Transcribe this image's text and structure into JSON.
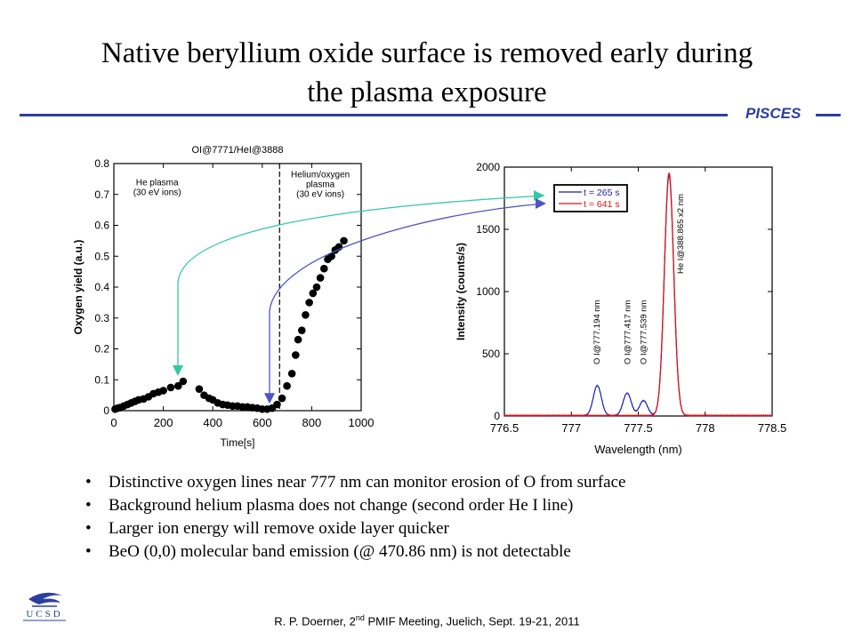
{
  "slide": {
    "title_line1": "Native beryllium oxide surface is removed early during",
    "title_line2": "the plasma exposure",
    "brand": "PISCES",
    "logo_text": "UCSD",
    "bullets": [
      "Distinctive oxygen lines near 777 nm can monitor erosion of O from surface",
      "Background helium plasma does not change (second order He I line)",
      "Larger ion energy will remove oxide layer quicker",
      "BeO (0,0) molecular band emission (@ 470.86 nm) is not detectable"
    ],
    "footer": {
      "author": "R. P. Doerner, 2",
      "sup": "nd",
      "rest": " PMIF Meeting, Juelich, Sept. 19-21, 2011"
    }
  },
  "colors": {
    "accent": "#2b3fa0",
    "teal_arrow": "#33c9a0",
    "blue_arrow": "#4f55c0",
    "blue_series": "#1a1aa8",
    "red_series": "#e01010"
  },
  "chart_data": [
    {
      "type": "scatter",
      "title": "OI@7771/HeI@3888",
      "xlabel": "Time[s]",
      "ylabel": "Oxygen yield (a.u.)",
      "xlim": [
        0,
        1000
      ],
      "ylim": [
        0,
        0.8
      ],
      "xticks": [
        0,
        200,
        400,
        600,
        800,
        1000
      ],
      "yticks": [
        0,
        0.1,
        0.2,
        0.3,
        0.4,
        0.5,
        0.6,
        0.7,
        0.8
      ],
      "vline": 670,
      "annotations": [
        {
          "lines": [
            "He plasma",
            "(30 eV ions)"
          ],
          "x": 175,
          "y": 0.73
        },
        {
          "lines": [
            "Helium/oxygen",
            "plasma",
            "(30 eV ions)"
          ],
          "x": 835,
          "y": 0.755
        }
      ],
      "points": [
        [
          5,
          0.005
        ],
        [
          15,
          0.008
        ],
        [
          25,
          0.01
        ],
        [
          40,
          0.015
        ],
        [
          55,
          0.02
        ],
        [
          70,
          0.025
        ],
        [
          85,
          0.03
        ],
        [
          100,
          0.035
        ],
        [
          120,
          0.038
        ],
        [
          140,
          0.045
        ],
        [
          160,
          0.055
        ],
        [
          180,
          0.06
        ],
        [
          200,
          0.065
        ],
        [
          230,
          0.075
        ],
        [
          260,
          0.08
        ],
        [
          280,
          0.095
        ],
        [
          345,
          0.07
        ],
        [
          365,
          0.05
        ],
        [
          385,
          0.04
        ],
        [
          400,
          0.035
        ],
        [
          420,
          0.025
        ],
        [
          440,
          0.02
        ],
        [
          460,
          0.018
        ],
        [
          480,
          0.015
        ],
        [
          500,
          0.015
        ],
        [
          520,
          0.012
        ],
        [
          540,
          0.012
        ],
        [
          560,
          0.01
        ],
        [
          580,
          0.008
        ],
        [
          600,
          0.005
        ],
        [
          620,
          0.005
        ],
        [
          640,
          0.008
        ],
        [
          660,
          0.02
        ],
        [
          680,
          0.04
        ],
        [
          700,
          0.08
        ],
        [
          720,
          0.12
        ],
        [
          735,
          0.18
        ],
        [
          745,
          0.23
        ],
        [
          760,
          0.26
        ],
        [
          775,
          0.31
        ],
        [
          790,
          0.35
        ],
        [
          805,
          0.38
        ],
        [
          820,
          0.4
        ],
        [
          835,
          0.43
        ],
        [
          850,
          0.46
        ],
        [
          865,
          0.49
        ],
        [
          880,
          0.5
        ],
        [
          895,
          0.52
        ],
        [
          910,
          0.53
        ],
        [
          930,
          0.55
        ]
      ]
    },
    {
      "type": "line",
      "xlabel": "Wavelength (nm)",
      "ylabel": "Intensity (counts/s)",
      "xlim": [
        776.5,
        778.5
      ],
      "ylim": [
        0,
        2000
      ],
      "xticks": [
        776.5,
        777,
        777.5,
        778,
        778.5
      ],
      "yticks": [
        0,
        500,
        1000,
        1500,
        2000
      ],
      "legend_position": "top-left",
      "line_labels": [
        {
          "text": "O I@777.194 nm",
          "x": 777.19
        },
        {
          "text": "O I@777.417 nm",
          "x": 777.42
        },
        {
          "text": "O I@777.539 nm",
          "x": 777.54
        },
        {
          "text": "He I@388.865 x2 nm",
          "x": 777.73
        }
      ],
      "series": [
        {
          "name": "t = 265 s",
          "color": "#1a1aa8",
          "peaks": [
            {
              "center": 777.194,
              "height": 240,
              "width": 0.03
            },
            {
              "center": 777.417,
              "height": 180,
              "width": 0.03
            },
            {
              "center": 777.539,
              "height": 120,
              "width": 0.03
            },
            {
              "center": 777.73,
              "height": 1930,
              "width": 0.035
            }
          ]
        },
        {
          "name": "t = 641 s",
          "color": "#e01010",
          "peaks": [
            {
              "center": 777.73,
              "height": 1950,
              "width": 0.035
            }
          ]
        }
      ]
    }
  ]
}
